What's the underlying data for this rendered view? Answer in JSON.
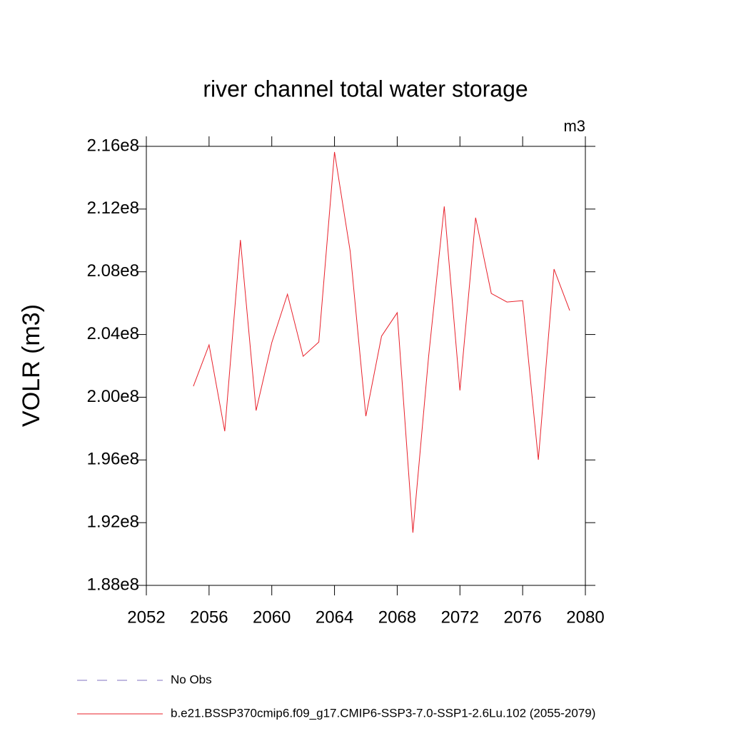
{
  "chart_data": {
    "type": "line",
    "title": "river channel total water storage",
    "units": "m3",
    "y_label": "VOLR  (m3)",
    "x": [
      2055,
      2056,
      2057,
      2058,
      2059,
      2060,
      2061,
      2062,
      2063,
      2064,
      2065,
      2066,
      2067,
      2068,
      2069,
      2070,
      2071,
      2072,
      2073,
      2074,
      2075,
      2076,
      2077,
      2078,
      2079
    ],
    "series": [
      {
        "name": "No Obs",
        "color": "#8070c0",
        "dash": "dashed",
        "values": [
          null,
          null,
          null,
          null,
          null,
          null,
          null,
          null,
          null,
          null,
          null,
          null,
          null,
          null,
          null,
          null,
          null,
          null,
          null,
          null,
          null,
          null,
          null,
          null,
          null
        ]
      },
      {
        "name": "b.e21.BSSP370cmip6.f09_g17.CMIP6-SSP3-7.0-SSP1-2.6Lu.102 (2055-2079)",
        "color": "#e8202a",
        "dash": "solid",
        "values": [
          200700000,
          203340000,
          197830000,
          210030000,
          199150000,
          203480000,
          206570000,
          202610000,
          203520000,
          215640000,
          209310000,
          198790000,
          203890000,
          205390000,
          191360000,
          202570000,
          212170000,
          200430000,
          211450000,
          206620000,
          206070000,
          206160000,
          196010000,
          208170000,
          205530000
        ]
      }
    ],
    "xlim": [
      2052,
      2080
    ],
    "xticks": [
      2052,
      2056,
      2060,
      2064,
      2068,
      2072,
      2076,
      2080
    ],
    "ylim": [
      188000000,
      216000000
    ],
    "yticks": [
      {
        "value": 188000000,
        "label": "1.88e8"
      },
      {
        "value": 192000000,
        "label": "1.92e8"
      },
      {
        "value": 196000000,
        "label": "1.96e8"
      },
      {
        "value": 200000000,
        "label": "2.00e8"
      },
      {
        "value": 204000000,
        "label": "2.04e8"
      },
      {
        "value": 208000000,
        "label": "2.08e8"
      },
      {
        "value": 212000000,
        "label": "2.12e8"
      },
      {
        "value": 216000000,
        "label": "2.16e8"
      }
    ],
    "grid": false,
    "legend": "bottom"
  }
}
